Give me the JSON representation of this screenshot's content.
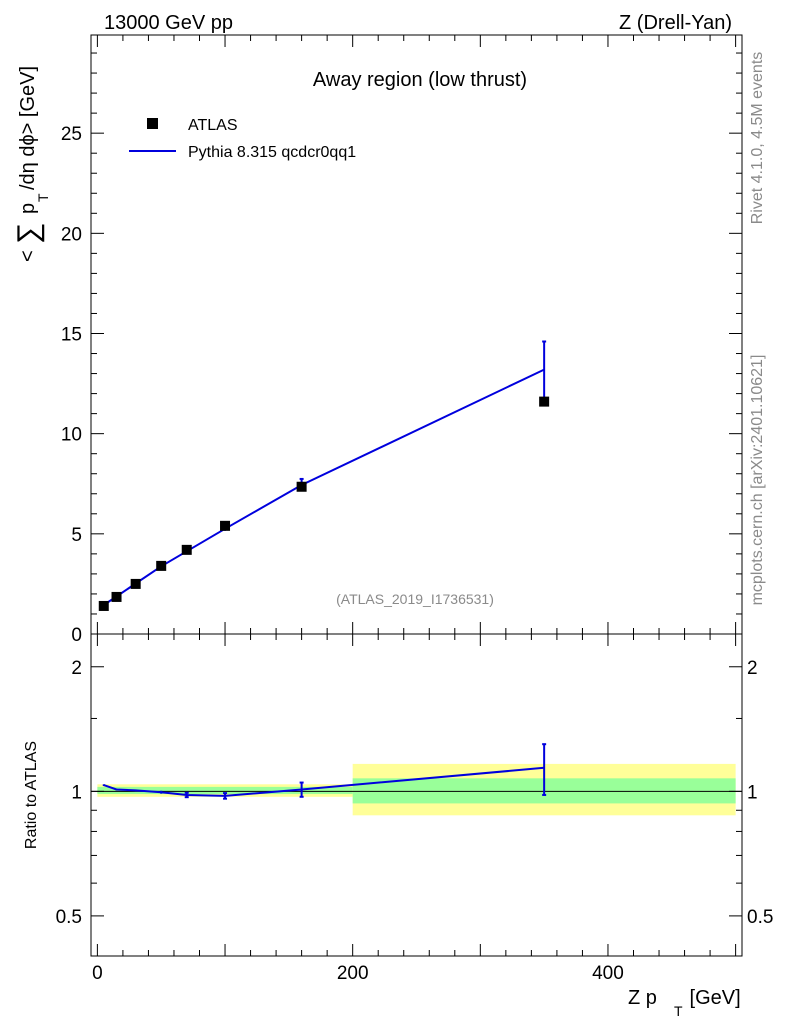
{
  "header": {
    "energy_label": "13000 GeV pp",
    "process_label": "Z (Drell-Yan)"
  },
  "side_labels": {
    "rivet": "Rivet 4.1.0,  4.5M events",
    "source": "mcplots.cern.ch [arXiv:2401.10621]"
  },
  "chart_data": [
    {
      "type": "line",
      "title": "Away region (low thrust)",
      "ylabel": "<∑ p_T /dη dϕ> [GeV]",
      "ylabel_parts": {
        "open": "<",
        "sum": "∑",
        "p": "p",
        "sub_t": "T",
        "rest": "/dη dϕ> [GeV]"
      },
      "xlabel": "",
      "xlim": [
        -5,
        505
      ],
      "ylim": [
        0,
        29.9
      ],
      "yticks": [
        0,
        5,
        10,
        15,
        20,
        25
      ],
      "ytick_labels": [
        "0",
        "5",
        "10",
        "15",
        "20",
        "25"
      ],
      "legend": [
        {
          "name": "ATLAS",
          "style": "marker"
        },
        {
          "name": "Pythia 8.315 qcdcr0qq1",
          "style": "line"
        }
      ],
      "legend_position": "top-left",
      "watermark": "(ATLAS_2019_I1736531)",
      "series": [
        {
          "name": "ATLAS",
          "x": [
            5,
            15,
            30,
            50,
            70,
            100,
            160,
            350
          ],
          "y": [
            1.4,
            1.85,
            2.5,
            3.4,
            4.2,
            5.4,
            7.35,
            11.6
          ]
        },
        {
          "name": "Pythia 8.315 qcdcr0qq1",
          "x": [
            5,
            15,
            30,
            50,
            70,
            100,
            160,
            350
          ],
          "y": [
            1.45,
            1.87,
            2.52,
            3.38,
            4.13,
            5.25,
            7.44,
            13.2
          ],
          "yerr": [
            0.03,
            0.03,
            0.03,
            0.04,
            0.06,
            0.1,
            0.3,
            1.4
          ]
        }
      ]
    },
    {
      "type": "line",
      "title": "",
      "ylabel": "Ratio to ATLAS",
      "xlabel": "Z p_T [GeV]",
      "xlabel_parts": {
        "main": "Z p",
        "sub_t": "T",
        "rest": " [GeV]"
      },
      "xlim": [
        -5,
        505
      ],
      "ylim_log": [
        0.4,
        2.4
      ],
      "yticks": [
        0.5,
        1,
        2
      ],
      "ytick_labels": [
        "0.5",
        "1",
        "2"
      ],
      "xticks": [
        0,
        200,
        400
      ],
      "xtick_labels": [
        "0",
        "200",
        "400"
      ],
      "bands": [
        {
          "x0": 0,
          "x1": 200,
          "green_lo": 0.985,
          "green_hi": 1.025,
          "yellow_lo": 0.97,
          "yellow_hi": 1.04
        },
        {
          "x0": 200,
          "x1": 500,
          "green_lo": 0.935,
          "green_hi": 1.075,
          "yellow_lo": 0.875,
          "yellow_hi": 1.165
        }
      ],
      "series": [
        {
          "name": "Pythia 8.315 qcdcr0qq1",
          "x": [
            5,
            15,
            30,
            50,
            70,
            100,
            160,
            350
          ],
          "y": [
            1.035,
            1.01,
            1.005,
            0.995,
            0.98,
            0.975,
            1.01,
            1.14
          ],
          "yerr": [
            0.005,
            0.005,
            0.005,
            0.008,
            0.012,
            0.015,
            0.04,
            0.16
          ]
        }
      ]
    }
  ]
}
